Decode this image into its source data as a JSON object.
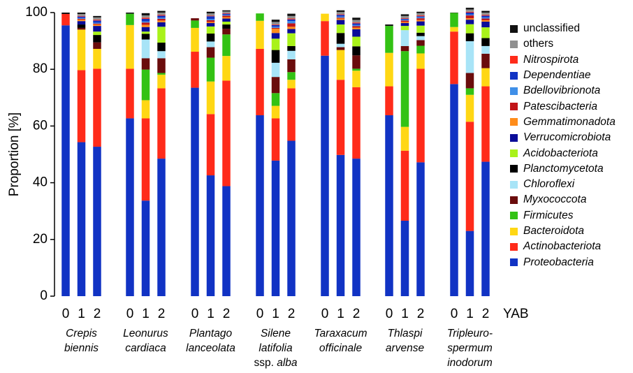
{
  "chart_data": {
    "type": "bar",
    "stacked": true,
    "ylabel": "Proportion [%]",
    "ylim": [
      0,
      100
    ],
    "yticks": [
      0,
      20,
      40,
      60,
      80,
      100
    ],
    "grid": false,
    "legend_position": "right",
    "x_axis_suffix": "YAB",
    "groups": [
      {
        "lines": [
          {
            "parts": [
              {
                "text": "Crepis",
                "italic": true
              }
            ]
          },
          {
            "parts": [
              {
                "text": "biennis",
                "italic": true
              }
            ]
          }
        ],
        "ticks": [
          "0",
          "1",
          "2"
        ]
      },
      {
        "lines": [
          {
            "parts": [
              {
                "text": "Leonurus",
                "italic": true
              }
            ]
          },
          {
            "parts": [
              {
                "text": "cardiaca",
                "italic": true
              }
            ]
          }
        ],
        "ticks": [
          "0",
          "1",
          "2"
        ]
      },
      {
        "lines": [
          {
            "parts": [
              {
                "text": "Plantago",
                "italic": true
              }
            ]
          },
          {
            "parts": [
              {
                "text": "lanceolata",
                "italic": true
              }
            ]
          }
        ],
        "ticks": [
          "0",
          "1",
          "2"
        ]
      },
      {
        "lines": [
          {
            "parts": [
              {
                "text": "Silene",
                "italic": true
              }
            ]
          },
          {
            "parts": [
              {
                "text": "latifolia",
                "italic": true
              }
            ]
          },
          {
            "parts": [
              {
                "text": "ssp. ",
                "italic": false
              },
              {
                "text": "alba",
                "italic": true
              }
            ]
          }
        ],
        "ticks": [
          "0",
          "1",
          "2"
        ]
      },
      {
        "lines": [
          {
            "parts": [
              {
                "text": "Taraxacum",
                "italic": true
              }
            ]
          },
          {
            "parts": [
              {
                "text": "officinale",
                "italic": true
              }
            ]
          }
        ],
        "ticks": [
          "0",
          "1",
          "2"
        ]
      },
      {
        "lines": [
          {
            "parts": [
              {
                "text": "Thlaspi",
                "italic": true
              }
            ]
          },
          {
            "parts": [
              {
                "text": "arvense",
                "italic": true
              }
            ]
          }
        ],
        "ticks": [
          "0",
          "1",
          "2"
        ]
      },
      {
        "lines": [
          {
            "parts": [
              {
                "text": "Tripleuro-",
                "italic": true
              }
            ]
          },
          {
            "parts": [
              {
                "text": "spermum",
                "italic": true
              }
            ]
          },
          {
            "parts": [
              {
                "text": "inodorum",
                "italic": true
              }
            ]
          }
        ],
        "ticks": [
          "0",
          "1",
          "2"
        ]
      }
    ],
    "series": [
      {
        "name": "Proteobacteria",
        "italic": true,
        "color": "#1133c4",
        "values": [
          95.5,
          54.3,
          52.7,
          62.7,
          33.7,
          48.5,
          73.5,
          42.6,
          38.8,
          63.8,
          47.8,
          54.8,
          84.8,
          49.8,
          48.5,
          63.8,
          26.6,
          47.2,
          74.8,
          23.0,
          47.4
        ]
      },
      {
        "name": "Actinobacteriota",
        "italic": true,
        "color": "#ff2b1a",
        "values": [
          4.0,
          25.4,
          27.5,
          17.5,
          29.0,
          24.8,
          12.7,
          21.6,
          37.2,
          23.4,
          14.9,
          18.5,
          12.2,
          26.5,
          25.2,
          10.2,
          24.7,
          33.0,
          18.5,
          38.5,
          26.6
        ]
      },
      {
        "name": "Bacteroidota",
        "italic": true,
        "color": "#ffd714",
        "values": [
          0,
          14.3,
          7.0,
          15.4,
          6.4,
          4.8,
          8.4,
          11.5,
          8.7,
          9.9,
          4.4,
          3.0,
          2.6,
          10.5,
          5.8,
          11.8,
          8.4,
          5.4,
          1.6,
          9.5,
          6.4
        ]
      },
      {
        "name": "Firmicutes",
        "italic": true,
        "color": "#33c214",
        "values": [
          0,
          0,
          0,
          4.0,
          10.8,
          0.6,
          2.6,
          8.4,
          7.6,
          2.6,
          4.5,
          2.7,
          0,
          0,
          0.7,
          9.5,
          26.7,
          2.7,
          5.0,
          2.3,
          0
        ]
      },
      {
        "name": "Myxococcota",
        "italic": true,
        "color": "#6a0c0c",
        "values": [
          0,
          0.6,
          2.3,
          0,
          4.0,
          5.2,
          0.8,
          3.7,
          2.0,
          0,
          5.7,
          4.5,
          0,
          1.0,
          4.7,
          0,
          1.8,
          2.0,
          0,
          5.4,
          5.1
        ]
      },
      {
        "name": "Chloroflexi",
        "italic": true,
        "color": "#a8e4f7",
        "values": [
          0,
          0,
          0,
          0,
          6.6,
          2.5,
          0,
          2.0,
          0,
          0,
          5.0,
          3.0,
          0,
          1.2,
          0,
          0,
          5.6,
          1.4,
          0,
          11.2,
          2.7
        ]
      },
      {
        "name": "Planctomycetota",
        "italic": true,
        "color": "#000000",
        "values": [
          0,
          1.2,
          2.6,
          0,
          2.0,
          3.0,
          0,
          2.8,
          1.5,
          0,
          4.5,
          1.7,
          0,
          3.8,
          3.2,
          0,
          0,
          1.2,
          0,
          2.8,
          2.8
        ]
      },
      {
        "name": "Acidobacteriota",
        "italic": true,
        "color": "#a9f21a",
        "values": [
          0,
          0,
          1.2,
          0,
          0.8,
          5.6,
          0,
          2.5,
          1.0,
          0,
          4.0,
          4.5,
          0,
          3.0,
          3.4,
          0,
          1.5,
          2.5,
          0,
          3.2,
          3.8
        ]
      },
      {
        "name": "Verrucomicrobiota",
        "italic": true,
        "color": "#0a0c99",
        "values": [
          0,
          1.2,
          2.0,
          0,
          1.6,
          1.6,
          0,
          1.2,
          1.1,
          0,
          2.0,
          1.5,
          0,
          1.6,
          2.6,
          0,
          1.0,
          1.5,
          0,
          1.6,
          2.0
        ]
      },
      {
        "name": "Gemmatimonadota",
        "italic": true,
        "color": "#ff8c1a",
        "values": [
          0,
          0.5,
          0.5,
          0,
          0.8,
          0.6,
          0,
          0.4,
          0.5,
          0,
          1.5,
          0.8,
          0,
          0.5,
          0.6,
          0,
          0.4,
          0.5,
          0,
          0.5,
          0.5
        ]
      },
      {
        "name": "Patescibacteria",
        "italic": true,
        "color": "#c21418",
        "values": [
          0,
          0.3,
          0.3,
          0,
          0.8,
          0.6,
          0,
          0.6,
          0.5,
          0,
          0.3,
          1.2,
          0,
          0.3,
          0.5,
          0,
          0.5,
          0.6,
          0,
          1.0,
          0.6
        ]
      },
      {
        "name": "Bdellovibrionota",
        "italic": true,
        "color": "#3f8fe8",
        "values": [
          0,
          0.3,
          0.3,
          0,
          0.4,
          0.4,
          0,
          0.4,
          0.3,
          0,
          0.4,
          0.8,
          0,
          0.4,
          0.4,
          0,
          0.3,
          0.4,
          0,
          0.3,
          0.4
        ]
      },
      {
        "name": "Dependentiae",
        "italic": true,
        "color": "#1133c4",
        "values": [
          0,
          0.5,
          0.8,
          0,
          0.9,
          0.7,
          0,
          1.0,
          0.4,
          0,
          0.6,
          0.6,
          0,
          0.6,
          0.6,
          0,
          0.3,
          0.3,
          0,
          0.7,
          0.6
        ]
      },
      {
        "name": "Nitrospirota",
        "italic": true,
        "color": "#ff2b1a",
        "values": [
          0,
          0.2,
          0.3,
          0,
          0.4,
          0.3,
          0,
          0.2,
          0.2,
          0,
          0.2,
          0.3,
          0,
          0.2,
          0.3,
          0,
          0.2,
          0.3,
          0,
          0.3,
          0.3
        ]
      },
      {
        "name": "others",
        "italic": false,
        "color": "#909090",
        "values": [
          0,
          0.7,
          0.8,
          0,
          0.8,
          0.8,
          0,
          0.8,
          0.6,
          0,
          0.9,
          0.9,
          0,
          0.8,
          0.9,
          0,
          0.8,
          0.8,
          0,
          0.8,
          0.8
        ]
      },
      {
        "name": "unclassified",
        "italic": false,
        "color": "#111111",
        "values": [
          0.5,
          0.5,
          0.5,
          0.4,
          0.8,
          0.6,
          0,
          0.6,
          0.4,
          0,
          0.8,
          0.8,
          0,
          0.6,
          0.8,
          0.5,
          0.6,
          0.5,
          0.1,
          0.6,
          0.6
        ]
      }
    ]
  }
}
